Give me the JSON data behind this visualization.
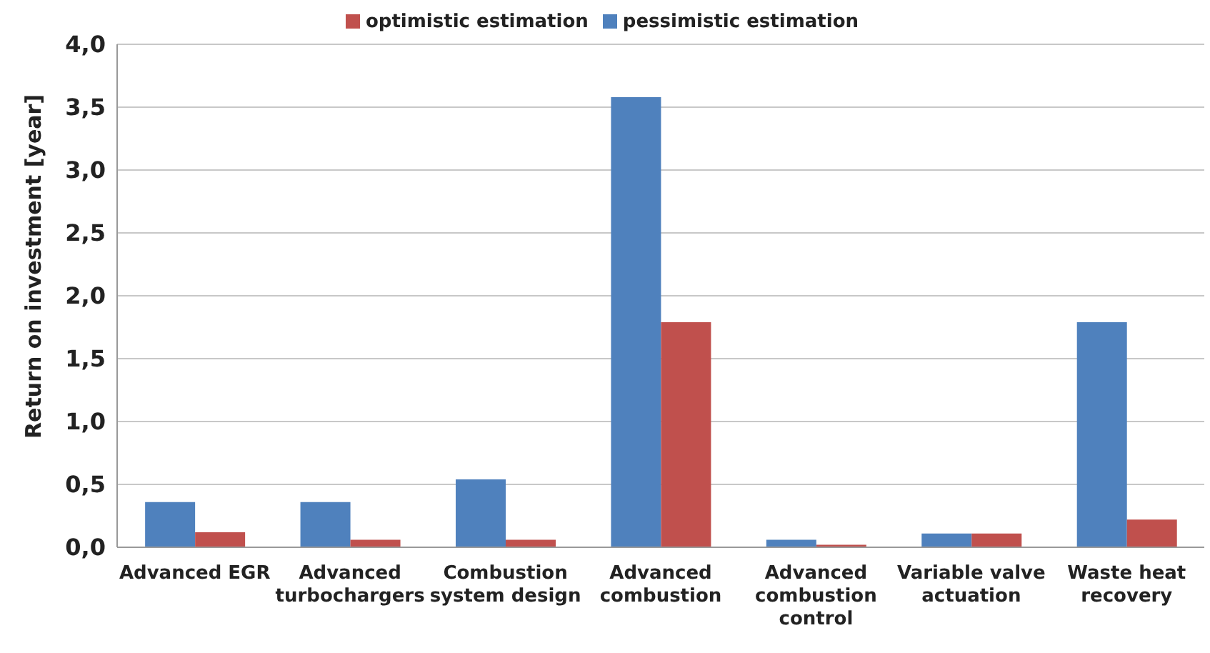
{
  "chart_data": {
    "type": "bar",
    "ylabel": "Return on investment [year]",
    "categories": [
      "Advanced EGR",
      "Advanced turbochargers",
      "Combustion system design",
      "Advanced combustion",
      "Advanced combustion control",
      "Variable valve actuation",
      "Waste heat recovery"
    ],
    "series": [
      {
        "name": "pessimistic estimation",
        "color": "#4f81bd",
        "values": [
          0.36,
          0.36,
          0.54,
          3.58,
          0.06,
          0.11,
          1.79
        ]
      },
      {
        "name": "optimistic estimation",
        "color": "#c0504d",
        "values": [
          0.12,
          0.06,
          0.06,
          1.79,
          0.02,
          0.11,
          0.22
        ]
      }
    ],
    "ylim": [
      0,
      4
    ],
    "yticks": [
      {
        "value": 0,
        "label": "0,0"
      },
      {
        "value": 0.5,
        "label": "0,5"
      },
      {
        "value": 1,
        "label": "1,0"
      },
      {
        "value": 1.5,
        "label": "1,5"
      },
      {
        "value": 2,
        "label": "2,0"
      },
      {
        "value": 2.5,
        "label": "2,5"
      },
      {
        "value": 3,
        "label": "3,0"
      },
      {
        "value": 3.5,
        "label": "3,5"
      },
      {
        "value": 4,
        "label": "4,0"
      }
    ],
    "grid": "y",
    "legend": "top"
  }
}
